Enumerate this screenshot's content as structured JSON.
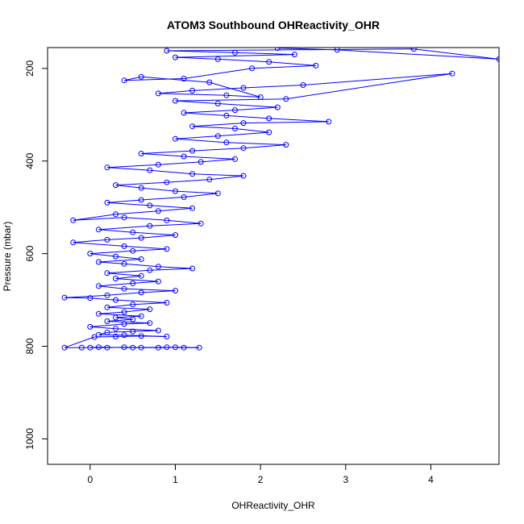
{
  "chart_data": {
    "type": "line",
    "title": "ATOM3 Southbound OHReactivity_OHR",
    "xlabel": "OHReactivity_OHR",
    "ylabel": "Pressure (mbar)",
    "xlim": [
      -0.5,
      4.8
    ],
    "ylim": [
      1055,
      155
    ],
    "y_inverted": true,
    "x_ticks": [
      0,
      1,
      2,
      3,
      4
    ],
    "y_ticks": [
      200,
      400,
      600,
      800,
      1000
    ],
    "grid": false,
    "marker": "open-circle",
    "series": [
      {
        "color": "#0000ff",
        "points": [
          [
            0.0,
            803
          ],
          [
            0.2,
            803
          ],
          [
            0.4,
            802
          ],
          [
            0.6,
            803
          ],
          [
            0.8,
            803
          ],
          [
            1.0,
            802
          ],
          [
            1.28,
            803
          ],
          [
            1.1,
            803
          ],
          [
            0.9,
            802
          ],
          [
            0.5,
            803
          ],
          [
            0.1,
            802
          ],
          [
            -0.1,
            803
          ],
          [
            -0.3,
            803
          ],
          [
            0.05,
            780
          ],
          [
            0.3,
            779
          ],
          [
            0.6,
            778
          ],
          [
            0.9,
            779
          ],
          [
            0.4,
            776
          ],
          [
            0.1,
            775
          ],
          [
            0.2,
            770
          ],
          [
            0.5,
            768
          ],
          [
            0.8,
            766
          ],
          [
            0.3,
            762
          ],
          [
            0.0,
            758
          ],
          [
            0.4,
            752
          ],
          [
            0.7,
            750
          ],
          [
            0.2,
            746
          ],
          [
            0.5,
            742
          ],
          [
            0.3,
            738
          ],
          [
            0.6,
            735
          ],
          [
            0.1,
            730
          ],
          [
            0.4,
            726
          ],
          [
            0.7,
            720
          ],
          [
            0.2,
            716
          ],
          [
            0.5,
            710
          ],
          [
            0.9,
            706
          ],
          [
            0.3,
            700
          ],
          [
            0.0,
            696
          ],
          [
            -0.3,
            695
          ],
          [
            0.2,
            690
          ],
          [
            0.6,
            684
          ],
          [
            1.0,
            680
          ],
          [
            0.4,
            676
          ],
          [
            0.1,
            670
          ],
          [
            0.5,
            664
          ],
          [
            0.8,
            660
          ],
          [
            0.3,
            654
          ],
          [
            0.6,
            648
          ],
          [
            0.2,
            642
          ],
          [
            0.7,
            636
          ],
          [
            1.2,
            632
          ],
          [
            0.8,
            628
          ],
          [
            0.4,
            622
          ],
          [
            0.1,
            618
          ],
          [
            0.6,
            612
          ],
          [
            0.3,
            606
          ],
          [
            0.0,
            600
          ],
          [
            0.5,
            594
          ],
          [
            0.9,
            590
          ],
          [
            0.4,
            584
          ],
          [
            -0.2,
            576
          ],
          [
            0.2,
            570
          ],
          [
            0.6,
            566
          ],
          [
            1.0,
            560
          ],
          [
            0.5,
            554
          ],
          [
            0.1,
            548
          ],
          [
            0.7,
            540
          ],
          [
            1.3,
            535
          ],
          [
            0.9,
            528
          ],
          [
            0.4,
            522
          ],
          [
            -0.2,
            528
          ],
          [
            0.3,
            515
          ],
          [
            0.8,
            508
          ],
          [
            1.2,
            502
          ],
          [
            0.7,
            496
          ],
          [
            0.2,
            490
          ],
          [
            0.6,
            484
          ],
          [
            1.1,
            478
          ],
          [
            1.5,
            470
          ],
          [
            1.0,
            465
          ],
          [
            0.6,
            458
          ],
          [
            0.3,
            452
          ],
          [
            0.9,
            446
          ],
          [
            1.4,
            440
          ],
          [
            1.8,
            432
          ],
          [
            1.2,
            428
          ],
          [
            0.7,
            420
          ],
          [
            0.2,
            414
          ],
          [
            0.8,
            408
          ],
          [
            1.3,
            402
          ],
          [
            1.7,
            396
          ],
          [
            1.1,
            390
          ],
          [
            0.6,
            384
          ],
          [
            1.2,
            378
          ],
          [
            1.8,
            372
          ],
          [
            2.3,
            365
          ],
          [
            1.6,
            360
          ],
          [
            1.0,
            352
          ],
          [
            1.5,
            346
          ],
          [
            2.1,
            338
          ],
          [
            1.7,
            330
          ],
          [
            1.2,
            325
          ],
          [
            1.8,
            318
          ],
          [
            2.8,
            315
          ],
          [
            2.1,
            308
          ],
          [
            1.6,
            302
          ],
          [
            1.1,
            296
          ],
          [
            1.7,
            290
          ],
          [
            2.2,
            284
          ],
          [
            1.5,
            276
          ],
          [
            1.0,
            270
          ],
          [
            2.3,
            266
          ],
          [
            4.25,
            211
          ],
          [
            2.5,
            236
          ],
          [
            1.8,
            242
          ],
          [
            1.2,
            248
          ],
          [
            0.8,
            254
          ],
          [
            1.6,
            258
          ],
          [
            2.0,
            262
          ],
          [
            1.4,
            230
          ],
          [
            0.6,
            218
          ],
          [
            0.4,
            226
          ],
          [
            1.1,
            222
          ],
          [
            1.9,
            200
          ],
          [
            2.65,
            194
          ],
          [
            2.1,
            186
          ],
          [
            1.5,
            180
          ],
          [
            1.0,
            176
          ],
          [
            2.4,
            170
          ],
          [
            1.7,
            166
          ],
          [
            0.9,
            162
          ],
          [
            3.8,
            158
          ],
          [
            4.8,
            180
          ],
          [
            2.9,
            160
          ],
          [
            2.2,
            156
          ]
        ]
      }
    ]
  }
}
